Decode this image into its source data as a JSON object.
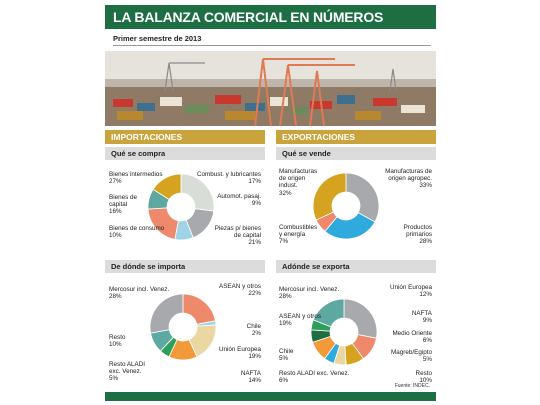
{
  "header": {
    "title": "LA BALANZA COMERCIAL EN NÚMEROS",
    "subtitle": "Primer semestre de 2013"
  },
  "sections": {
    "imports_title": "IMPORTACIONES",
    "exports_title": "EXPORTACIONES",
    "imports_what": "Qué se compra",
    "exports_what": "Qué se vende",
    "imports_where": "De dónde se importa",
    "exports_where": "Adónde se exporta"
  },
  "footer": {
    "source": "Fuente: INDEC."
  },
  "colors": {
    "gray": "#a7a9ac",
    "salmon": "#ee8a6b",
    "light_blue": "#9fd3e6",
    "gold": "#d5a320",
    "teal": "#5da8a0",
    "sky": "#2eaadc",
    "green": "#2f9e58",
    "orange": "#f29a3a",
    "cream": "#ead7a1",
    "dark_green": "#1d6e43"
  },
  "chart_data": [
    {
      "type": "pie",
      "title": "Qué se compra",
      "labels": [
        "Bienes intermedios",
        "Combust. y lubricantes",
        "Automot. pasaj.",
        "Piezas p/ bienes de capital",
        "Bienes de consumo",
        "Bienes de capital"
      ],
      "values": [
        27,
        17,
        9,
        21,
        10,
        16
      ],
      "value_labels": [
        "27%",
        "17%",
        "9%",
        "21%",
        "10%",
        "16%"
      ],
      "colors": [
        "#d9ddd8",
        "#a7a9ac",
        "#9fd3e6",
        "#ee8a6b",
        "#5da8a0",
        "#d5a320"
      ]
    },
    {
      "type": "pie",
      "title": "Qué se vende",
      "labels": [
        "Manufacturas de origen agropec.",
        "Productos primarios",
        "Combustibles y energía",
        "Manufacturas de origen indust."
      ],
      "values": [
        33,
        28,
        7,
        32
      ],
      "value_labels": [
        "33%",
        "28%",
        "7%",
        "32%"
      ],
      "colors": [
        "#a7a9ac",
        "#2eaadc",
        "#ee8a6b",
        "#d5a320"
      ]
    },
    {
      "type": "pie",
      "title": "De dónde se importa",
      "labels": [
        "ASEAN y otros",
        "Chile",
        "Unión Europea",
        "NAFTA",
        "Resto ALADI exc. Venez.",
        "Resto",
        "Mercosur incl. Venez."
      ],
      "values": [
        22,
        2,
        19,
        14,
        5,
        10,
        28
      ],
      "value_labels": [
        "22%",
        "2%",
        "19%",
        "14%",
        "5%",
        "10%",
        "28%"
      ],
      "colors": [
        "#ee8a6b",
        "#9fd3e6",
        "#ead7a1",
        "#f29a3a",
        "#2f9e58",
        "#5da8a0",
        "#a7a9ac"
      ]
    },
    {
      "type": "pie",
      "title": "Adónde se exporta",
      "labels": [
        "Mercosur incl. Venez.",
        "Unión Europea",
        "NAFTA",
        "Medio Oriente",
        "Magreb/Egipto",
        "Resto",
        "Resto ALADI exc. Venez.",
        "Chile",
        "ASEAN y otros"
      ],
      "values": [
        28,
        12,
        9,
        6,
        5,
        10,
        6,
        5,
        19
      ],
      "value_labels": [
        "28%",
        "12%",
        "9%",
        "6%",
        "5%",
        "10%",
        "6%",
        "5%",
        "19%"
      ],
      "colors": [
        "#a7a9ac",
        "#ee8a6b",
        "#d5a320",
        "#ead7a1",
        "#2eaadc",
        "#f29a3a",
        "#1d6e43",
        "#2f9e58",
        "#5da8a0"
      ]
    }
  ]
}
